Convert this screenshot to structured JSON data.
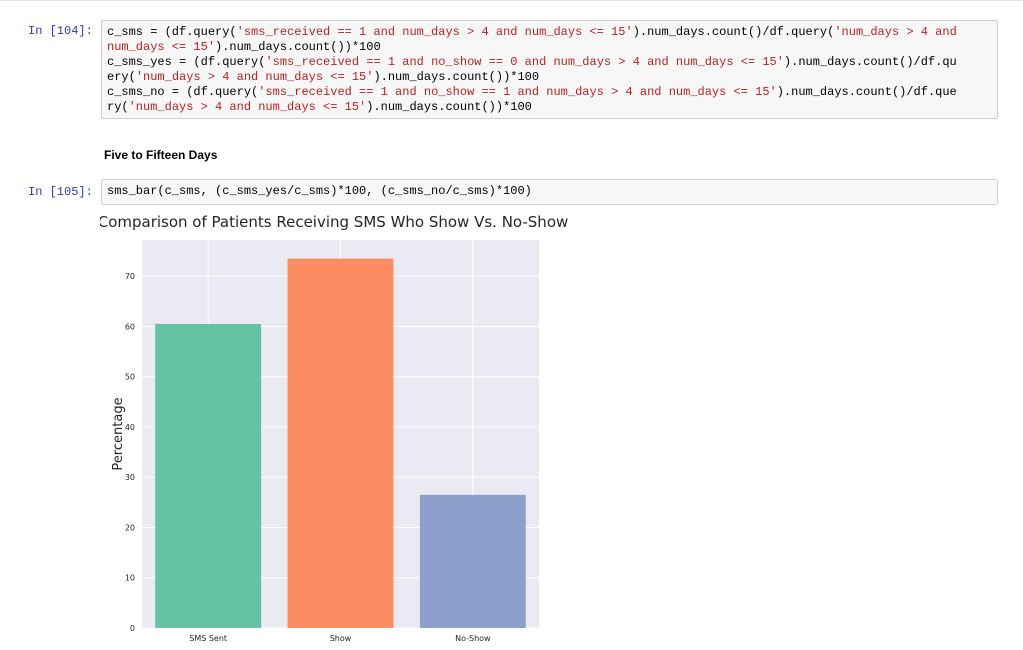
{
  "cell_104": {
    "prompt": "In [104]:",
    "lines": [
      [
        [
          "c_sms = (df.query(",
          "n"
        ],
        [
          "'sms_received == 1 and num_days > 4 and num_days <= 15'",
          "s"
        ],
        [
          ").num_days.count()/df.query(",
          "n"
        ],
        [
          "'num_days > 4 and",
          "s"
        ]
      ],
      [
        [
          "num_days <= 15'",
          "s"
        ],
        [
          ").num_days.count())*100",
          "n"
        ]
      ],
      [
        [
          "c_sms_yes = (df.query(",
          "n"
        ],
        [
          "'sms_received == 1 and no_show == 0 and num_days > 4 and num_days <= 15'",
          "s"
        ],
        [
          ").num_days.count()/df.qu",
          "n"
        ]
      ],
      [
        [
          "ery(",
          "n"
        ],
        [
          "'num_days > 4 and num_days <= 15'",
          "s"
        ],
        [
          ").num_days.count())*100",
          "n"
        ]
      ],
      [
        [
          "c_sms_no = (df.query(",
          "n"
        ],
        [
          "'sms_received == 1 and no_show == 1 and num_days > 4 and num_days <= 15'",
          "s"
        ],
        [
          ").num_days.count()/df.que",
          "n"
        ]
      ],
      [
        [
          "ry(",
          "n"
        ],
        [
          "'num_days > 4 and num_days <= 15'",
          "s"
        ],
        [
          ").num_days.count())*100",
          "n"
        ]
      ]
    ]
  },
  "markdown_heading": "Five to Fifteen Days",
  "cell_105": {
    "prompt": "In [105]:",
    "code": "sms_bar(c_sms, (c_sms_yes/c_sms)*100, (c_sms_no/c_sms)*100)"
  },
  "chart_data": {
    "type": "bar",
    "title": "Comparison of Patients Receiving SMS Who Show Vs. No-Show",
    "xlabel": "",
    "ylabel": "Percentage",
    "categories": [
      "SMS Sent",
      "Show",
      "No-Show"
    ],
    "values": [
      60.5,
      73.5,
      26.5
    ],
    "colors": [
      "#66c2a5",
      "#fc8d62",
      "#8da0cb"
    ],
    "ylim": [
      0,
      77.2
    ],
    "yticks": [
      0,
      10,
      20,
      30,
      40,
      50,
      60,
      70
    ],
    "background": "#eaeaf2",
    "grid": true
  }
}
